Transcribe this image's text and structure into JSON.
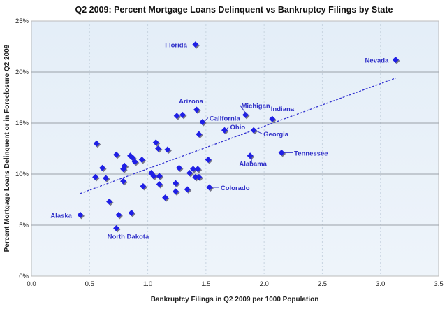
{
  "chart_data": {
    "type": "scatter",
    "title": "Q2 2009: Percent Mortgage Loans Delinquent vs Bankruptcy Filings by State",
    "xlabel": "Bankruptcy Filings in Q2 2009 per 1000 Population",
    "ylabel": "Percent Mortgage Loans Delinquent or in Foreclosure Q2 2009",
    "xlim": [
      0,
      3.5
    ],
    "ylim": [
      0,
      25
    ],
    "xticks": [
      "0.0",
      "0.5",
      "1.0",
      "1.5",
      "2.0",
      "2.5",
      "3.0",
      "3.5"
    ],
    "yticks": [
      "0%",
      "5%",
      "10%",
      "15%",
      "20%",
      "25%"
    ],
    "grid": true,
    "marker_color": "#1f1fe6",
    "label_color": "#3030c8",
    "trendline": {
      "style": "dashed",
      "x": [
        0.42,
        3.13
      ],
      "y": [
        8.1,
        19.4
      ]
    },
    "labeled_points": [
      {
        "label": "Florida",
        "x": 1.41,
        "y": 22.7
      },
      {
        "label": "Nevada",
        "x": 3.13,
        "y": 21.2
      },
      {
        "label": "Arizona",
        "x": 1.42,
        "y": 16.3
      },
      {
        "label": "Michigan",
        "x": 1.84,
        "y": 15.8
      },
      {
        "label": "Indiana",
        "x": 2.07,
        "y": 15.4
      },
      {
        "label": "California",
        "x": 1.47,
        "y": 15.1
      },
      {
        "label": "Ohio",
        "x": 1.66,
        "y": 14.3
      },
      {
        "label": "Georgia",
        "x": 1.91,
        "y": 14.3
      },
      {
        "label": "Tennessee",
        "x": 2.15,
        "y": 12.1
      },
      {
        "label": "Alabama",
        "x": 1.88,
        "y": 11.8
      },
      {
        "label": "Colorado",
        "x": 1.53,
        "y": 8.7
      },
      {
        "label": "Alaska",
        "x": 0.42,
        "y": 6.0
      },
      {
        "label": "North Dakota",
        "x": 0.73,
        "y": 4.7
      }
    ],
    "points": [
      [
        0.56,
        13.0
      ],
      [
        0.73,
        11.9
      ],
      [
        0.85,
        11.8
      ],
      [
        0.87,
        11.6
      ],
      [
        0.95,
        11.4
      ],
      [
        0.89,
        11.2
      ],
      [
        0.61,
        10.6
      ],
      [
        0.8,
        10.8
      ],
      [
        0.79,
        10.5
      ],
      [
        0.55,
        9.7
      ],
      [
        0.64,
        9.6
      ],
      [
        0.79,
        9.3
      ],
      [
        0.96,
        8.8
      ],
      [
        1.03,
        10.1
      ],
      [
        1.05,
        9.8
      ],
      [
        1.1,
        9.8
      ],
      [
        1.1,
        9.0
      ],
      [
        1.24,
        9.1
      ],
      [
        1.24,
        8.3
      ],
      [
        1.34,
        8.5
      ],
      [
        1.15,
        7.7
      ],
      [
        1.27,
        10.6
      ],
      [
        1.36,
        10.1
      ],
      [
        1.39,
        10.5
      ],
      [
        1.43,
        10.5
      ],
      [
        1.41,
        9.7
      ],
      [
        1.44,
        9.7
      ],
      [
        1.52,
        11.4
      ],
      [
        1.07,
        13.1
      ],
      [
        1.09,
        12.5
      ],
      [
        1.17,
        12.4
      ],
      [
        1.44,
        13.9
      ],
      [
        0.67,
        7.3
      ],
      [
        0.75,
        6.0
      ],
      [
        0.86,
        6.2
      ],
      [
        1.25,
        15.7
      ],
      [
        1.3,
        15.8
      ]
    ]
  }
}
